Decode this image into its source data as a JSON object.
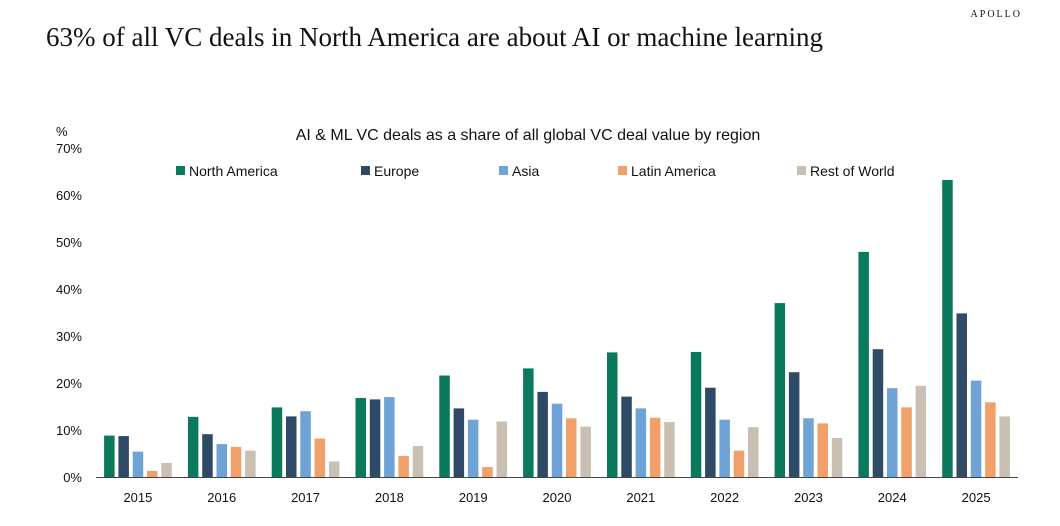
{
  "brand": "APOLLO",
  "headline": "63% of all VC deals in North America are about AI or machine learning",
  "chart_data": {
    "type": "bar",
    "title": "AI & ML VC deals as a share of all global VC deal value by region",
    "ylabel": "%",
    "xlabel": "",
    "ylim": [
      0,
      70
    ],
    "yticks": [
      0,
      10,
      20,
      30,
      40,
      50,
      60,
      70
    ],
    "ytick_labels": [
      "0%",
      "10%",
      "20%",
      "30%",
      "40%",
      "50%",
      "60%",
      "70%"
    ],
    "legend_position": "top",
    "grid": false,
    "categories": [
      "2015",
      "2016",
      "2017",
      "2018",
      "2019",
      "2020",
      "2021",
      "2022",
      "2023",
      "2024",
      "2025"
    ],
    "series": [
      {
        "name": "North America",
        "color": "#0b7a5c",
        "values": [
          8.8,
          12.8,
          14.8,
          16.8,
          21.6,
          23.1,
          26.5,
          26.6,
          37.0,
          47.9,
          63.2
        ]
      },
      {
        "name": "Europe",
        "color": "#2e4a66",
        "values": [
          8.7,
          9.1,
          12.9,
          16.5,
          14.6,
          18.1,
          17.1,
          19.0,
          22.3,
          27.2,
          34.8
        ]
      },
      {
        "name": "Asia",
        "color": "#6fa3d6",
        "values": [
          5.4,
          7.0,
          14.0,
          17.0,
          12.2,
          15.6,
          14.6,
          12.2,
          12.5,
          18.9,
          20.5
        ]
      },
      {
        "name": "Latin America",
        "color": "#f0a068",
        "values": [
          1.3,
          6.4,
          8.2,
          4.5,
          2.1,
          12.5,
          12.6,
          5.6,
          11.4,
          14.8,
          15.9
        ]
      },
      {
        "name": "Rest of World",
        "color": "#c9bfb2",
        "values": [
          3.0,
          5.6,
          3.3,
          6.6,
          11.8,
          10.7,
          11.7,
          10.6,
          8.3,
          19.4,
          12.9
        ]
      }
    ]
  }
}
